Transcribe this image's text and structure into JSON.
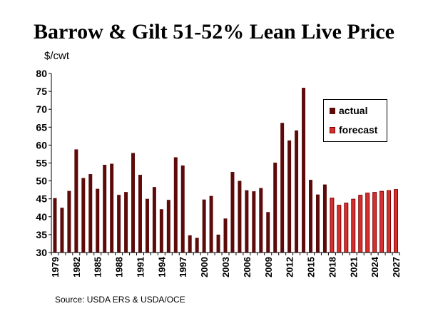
{
  "chart_data": {
    "type": "bar",
    "title": "Barrow & Gilt 51-52% Lean Live Price",
    "ylabel": "$/cwt",
    "xlabel": "",
    "ylim": [
      30,
      80
    ],
    "yticks": [
      30,
      35,
      40,
      45,
      50,
      55,
      60,
      65,
      70,
      75,
      80
    ],
    "grid": false,
    "legend_position": "right",
    "colors": {
      "actual": "#5c0a0a",
      "forecast_fill": "#d43030",
      "forecast_border": "#800000"
    },
    "categories": [
      "1979",
      "1980",
      "1981",
      "1982",
      "1983",
      "1984",
      "1985",
      "1986",
      "1987",
      "1988",
      "1989",
      "1990",
      "1991",
      "1992",
      "1993",
      "1994",
      "1995",
      "1996",
      "1997",
      "1998",
      "1999",
      "2000",
      "2001",
      "2002",
      "2003",
      "2004",
      "2005",
      "2006",
      "2007",
      "2008",
      "2009",
      "2010",
      "2011",
      "2012",
      "2013",
      "2014",
      "2015",
      "2016",
      "2017",
      "2018",
      "2019",
      "2020",
      "2021",
      "2022",
      "2023",
      "2024",
      "2025",
      "2026",
      "2027"
    ],
    "tick_labels": [
      "1979",
      "1982",
      "1985",
      "1988",
      "1991",
      "1994",
      "1997",
      "2000",
      "2003",
      "2006",
      "2009",
      "2012",
      "2015",
      "2018",
      "2021",
      "2024",
      "2027"
    ],
    "series": [
      {
        "name": "actual",
        "values": [
          45.2,
          42.5,
          47.2,
          58.8,
          50.8,
          51.9,
          47.8,
          54.5,
          54.8,
          46.1,
          46.9,
          57.8,
          51.7,
          45.0,
          48.3,
          42.1,
          44.7,
          56.6,
          54.3,
          34.8,
          34.1,
          44.8,
          45.8,
          35.0,
          39.5,
          52.5,
          50.0,
          47.4,
          47.1,
          48.0,
          41.3,
          55.1,
          66.2,
          61.3,
          64.1,
          76.0,
          50.3,
          46.2,
          49.0,
          null,
          null,
          null,
          null,
          null,
          null,
          null,
          null,
          null,
          null
        ]
      },
      {
        "name": "forecast",
        "values": [
          null,
          null,
          null,
          null,
          null,
          null,
          null,
          null,
          null,
          null,
          null,
          null,
          null,
          null,
          null,
          null,
          null,
          null,
          null,
          null,
          null,
          null,
          null,
          null,
          null,
          null,
          null,
          null,
          null,
          null,
          null,
          null,
          null,
          null,
          null,
          null,
          null,
          null,
          null,
          45.2,
          43.2,
          43.8,
          44.9,
          46.0,
          46.6,
          46.8,
          47.1,
          47.3,
          47.6
        ]
      }
    ]
  },
  "source": "Source:  USDA ERS & USDA/OCE"
}
